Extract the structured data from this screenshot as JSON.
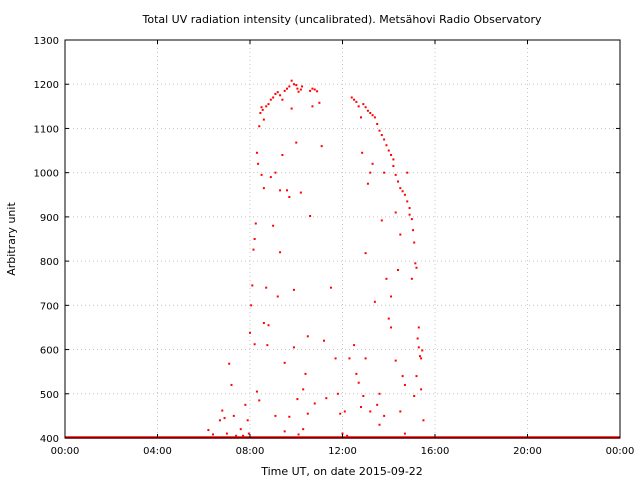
{
  "chart_data": {
    "type": "scatter",
    "title": "Total UV radiation intensity (uncalibrated). Metsähovi Radio Observatory",
    "xlabel": "Time UT, on date 2015-09-22",
    "ylabel": "Arbitrary unit",
    "x_unit": "hours UT",
    "xlim": [
      0,
      24
    ],
    "ylim": [
      400,
      1300
    ],
    "x_ticks": [
      0,
      4,
      8,
      12,
      16,
      20,
      24
    ],
    "x_tick_labels": [
      "00:00",
      "04:00",
      "08:00",
      "12:00",
      "16:00",
      "20:00",
      "00:00"
    ],
    "y_ticks": [
      400,
      500,
      600,
      700,
      800,
      900,
      1000,
      1100,
      1200,
      1300
    ],
    "y_tick_labels": [
      "400",
      "500",
      "600",
      "700",
      "800",
      "900",
      "1000",
      "1100",
      "1200",
      "1300"
    ],
    "grid": true,
    "legend": "none",
    "color": "#ff0000",
    "baseline": {
      "value": 400,
      "from_hour": 0,
      "to_hour": 24
    },
    "points": [
      [
        6.2,
        418
      ],
      [
        6.4,
        408
      ],
      [
        6.7,
        440
      ],
      [
        6.8,
        462
      ],
      [
        6.9,
        445
      ],
      [
        7.0,
        410
      ],
      [
        7.1,
        568
      ],
      [
        7.2,
        520
      ],
      [
        7.3,
        450
      ],
      [
        7.4,
        405
      ],
      [
        7.6,
        420
      ],
      [
        7.7,
        405
      ],
      [
        7.8,
        475
      ],
      [
        7.9,
        440
      ],
      [
        7.95,
        410
      ],
      [
        8.0,
        638
      ],
      [
        8.05,
        700
      ],
      [
        8.1,
        745
      ],
      [
        8.15,
        826
      ],
      [
        8.2,
        850
      ],
      [
        8.25,
        885
      ],
      [
        8.3,
        1045
      ],
      [
        8.35,
        1020
      ],
      [
        8.4,
        1105
      ],
      [
        8.45,
        1135
      ],
      [
        8.5,
        1148
      ],
      [
        8.55,
        1142
      ],
      [
        8.6,
        1120
      ],
      [
        8.7,
        1150
      ],
      [
        8.8,
        1155
      ],
      [
        8.9,
        1165
      ],
      [
        9.0,
        1170
      ],
      [
        9.1,
        1178
      ],
      [
        9.2,
        1182
      ],
      [
        9.3,
        1175
      ],
      [
        9.4,
        1165
      ],
      [
        9.5,
        1185
      ],
      [
        9.6,
        1190
      ],
      [
        9.7,
        1195
      ],
      [
        9.8,
        1208
      ],
      [
        9.9,
        1200
      ],
      [
        10.0,
        1198
      ],
      [
        10.05,
        1190
      ],
      [
        10.1,
        1183
      ],
      [
        10.2,
        1188
      ],
      [
        10.25,
        1195
      ],
      [
        8.2,
        612
      ],
      [
        8.3,
        505
      ],
      [
        8.4,
        485
      ],
      [
        8.5,
        995
      ],
      [
        8.6,
        965
      ],
      [
        8.7,
        740
      ],
      [
        8.8,
        655
      ],
      [
        8.9,
        990
      ],
      [
        9.0,
        880
      ],
      [
        9.1,
        450
      ],
      [
        9.2,
        720
      ],
      [
        9.3,
        960
      ],
      [
        9.4,
        1040
      ],
      [
        9.5,
        570
      ],
      [
        9.6,
        960
      ],
      [
        9.7,
        945
      ],
      [
        9.8,
        1145
      ],
      [
        9.9,
        735
      ],
      [
        10.0,
        1068
      ],
      [
        10.1,
        408
      ],
      [
        10.2,
        955
      ],
      [
        10.3,
        420
      ],
      [
        10.4,
        545
      ],
      [
        10.5,
        630
      ],
      [
        10.6,
        902
      ],
      [
        10.7,
        1150
      ],
      [
        8.6,
        660
      ],
      [
        8.75,
        610
      ],
      [
        9.1,
        1000
      ],
      [
        9.3,
        820
      ],
      [
        9.5,
        415
      ],
      [
        9.7,
        448
      ],
      [
        9.9,
        605
      ],
      [
        10.05,
        488
      ],
      [
        10.3,
        510
      ],
      [
        10.5,
        455
      ],
      [
        10.8,
        478
      ],
      [
        10.6,
        1185
      ],
      [
        10.7,
        1190
      ],
      [
        10.8,
        1188
      ],
      [
        10.9,
        1184
      ],
      [
        11.0,
        1158
      ],
      [
        11.1,
        1060
      ],
      [
        11.2,
        620
      ],
      [
        11.3,
        490
      ],
      [
        11.5,
        740
      ],
      [
        11.7,
        580
      ],
      [
        11.8,
        500
      ],
      [
        11.9,
        455
      ],
      [
        12.0,
        410
      ],
      [
        12.1,
        460
      ],
      [
        12.2,
        405
      ],
      [
        12.3,
        580
      ],
      [
        12.4,
        1170
      ],
      [
        12.5,
        1165
      ],
      [
        12.6,
        1160
      ],
      [
        12.7,
        1150
      ],
      [
        12.8,
        1125
      ],
      [
        12.85,
        1045
      ],
      [
        12.9,
        1155
      ],
      [
        13.0,
        1148
      ],
      [
        13.1,
        1140
      ],
      [
        13.2,
        1135
      ],
      [
        13.3,
        1130
      ],
      [
        13.4,
        1125
      ],
      [
        13.5,
        1110
      ],
      [
        13.6,
        1095
      ],
      [
        13.7,
        1085
      ],
      [
        13.8,
        1075
      ],
      [
        13.9,
        1062
      ],
      [
        14.0,
        1050
      ],
      [
        14.1,
        1040
      ],
      [
        14.2,
        1015
      ],
      [
        14.3,
        995
      ],
      [
        14.4,
        980
      ],
      [
        14.5,
        965
      ],
      [
        14.6,
        958
      ],
      [
        14.7,
        950
      ],
      [
        14.8,
        935
      ],
      [
        14.9,
        920
      ],
      [
        15.0,
        895
      ],
      [
        15.05,
        870
      ],
      [
        15.1,
        842
      ],
      [
        15.15,
        795
      ],
      [
        15.2,
        785
      ],
      [
        15.25,
        625
      ],
      [
        15.3,
        605
      ],
      [
        15.35,
        585
      ],
      [
        15.4,
        580
      ],
      [
        15.45,
        598
      ],
      [
        12.5,
        610
      ],
      [
        12.6,
        545
      ],
      [
        12.7,
        525
      ],
      [
        12.8,
        470
      ],
      [
        12.9,
        495
      ],
      [
        13.0,
        818
      ],
      [
        13.1,
        975
      ],
      [
        13.2,
        1000
      ],
      [
        13.3,
        1020
      ],
      [
        13.4,
        708
      ],
      [
        13.5,
        475
      ],
      [
        13.6,
        430
      ],
      [
        13.7,
        892
      ],
      [
        13.8,
        1000
      ],
      [
        13.9,
        760
      ],
      [
        14.0,
        670
      ],
      [
        14.1,
        650
      ],
      [
        14.2,
        1030
      ],
      [
        14.3,
        910
      ],
      [
        14.4,
        780
      ],
      [
        14.5,
        860
      ],
      [
        14.6,
        540
      ],
      [
        14.7,
        520
      ],
      [
        14.8,
        1000
      ],
      [
        14.9,
        905
      ],
      [
        15.0,
        760
      ],
      [
        15.1,
        495
      ],
      [
        15.2,
        540
      ],
      [
        15.3,
        650
      ],
      [
        15.4,
        510
      ],
      [
        15.5,
        440
      ],
      [
        13.0,
        580
      ],
      [
        13.2,
        460
      ],
      [
        13.6,
        500
      ],
      [
        13.8,
        450
      ],
      [
        14.1,
        720
      ],
      [
        14.3,
        575
      ],
      [
        14.5,
        460
      ],
      [
        14.7,
        410
      ]
    ]
  }
}
